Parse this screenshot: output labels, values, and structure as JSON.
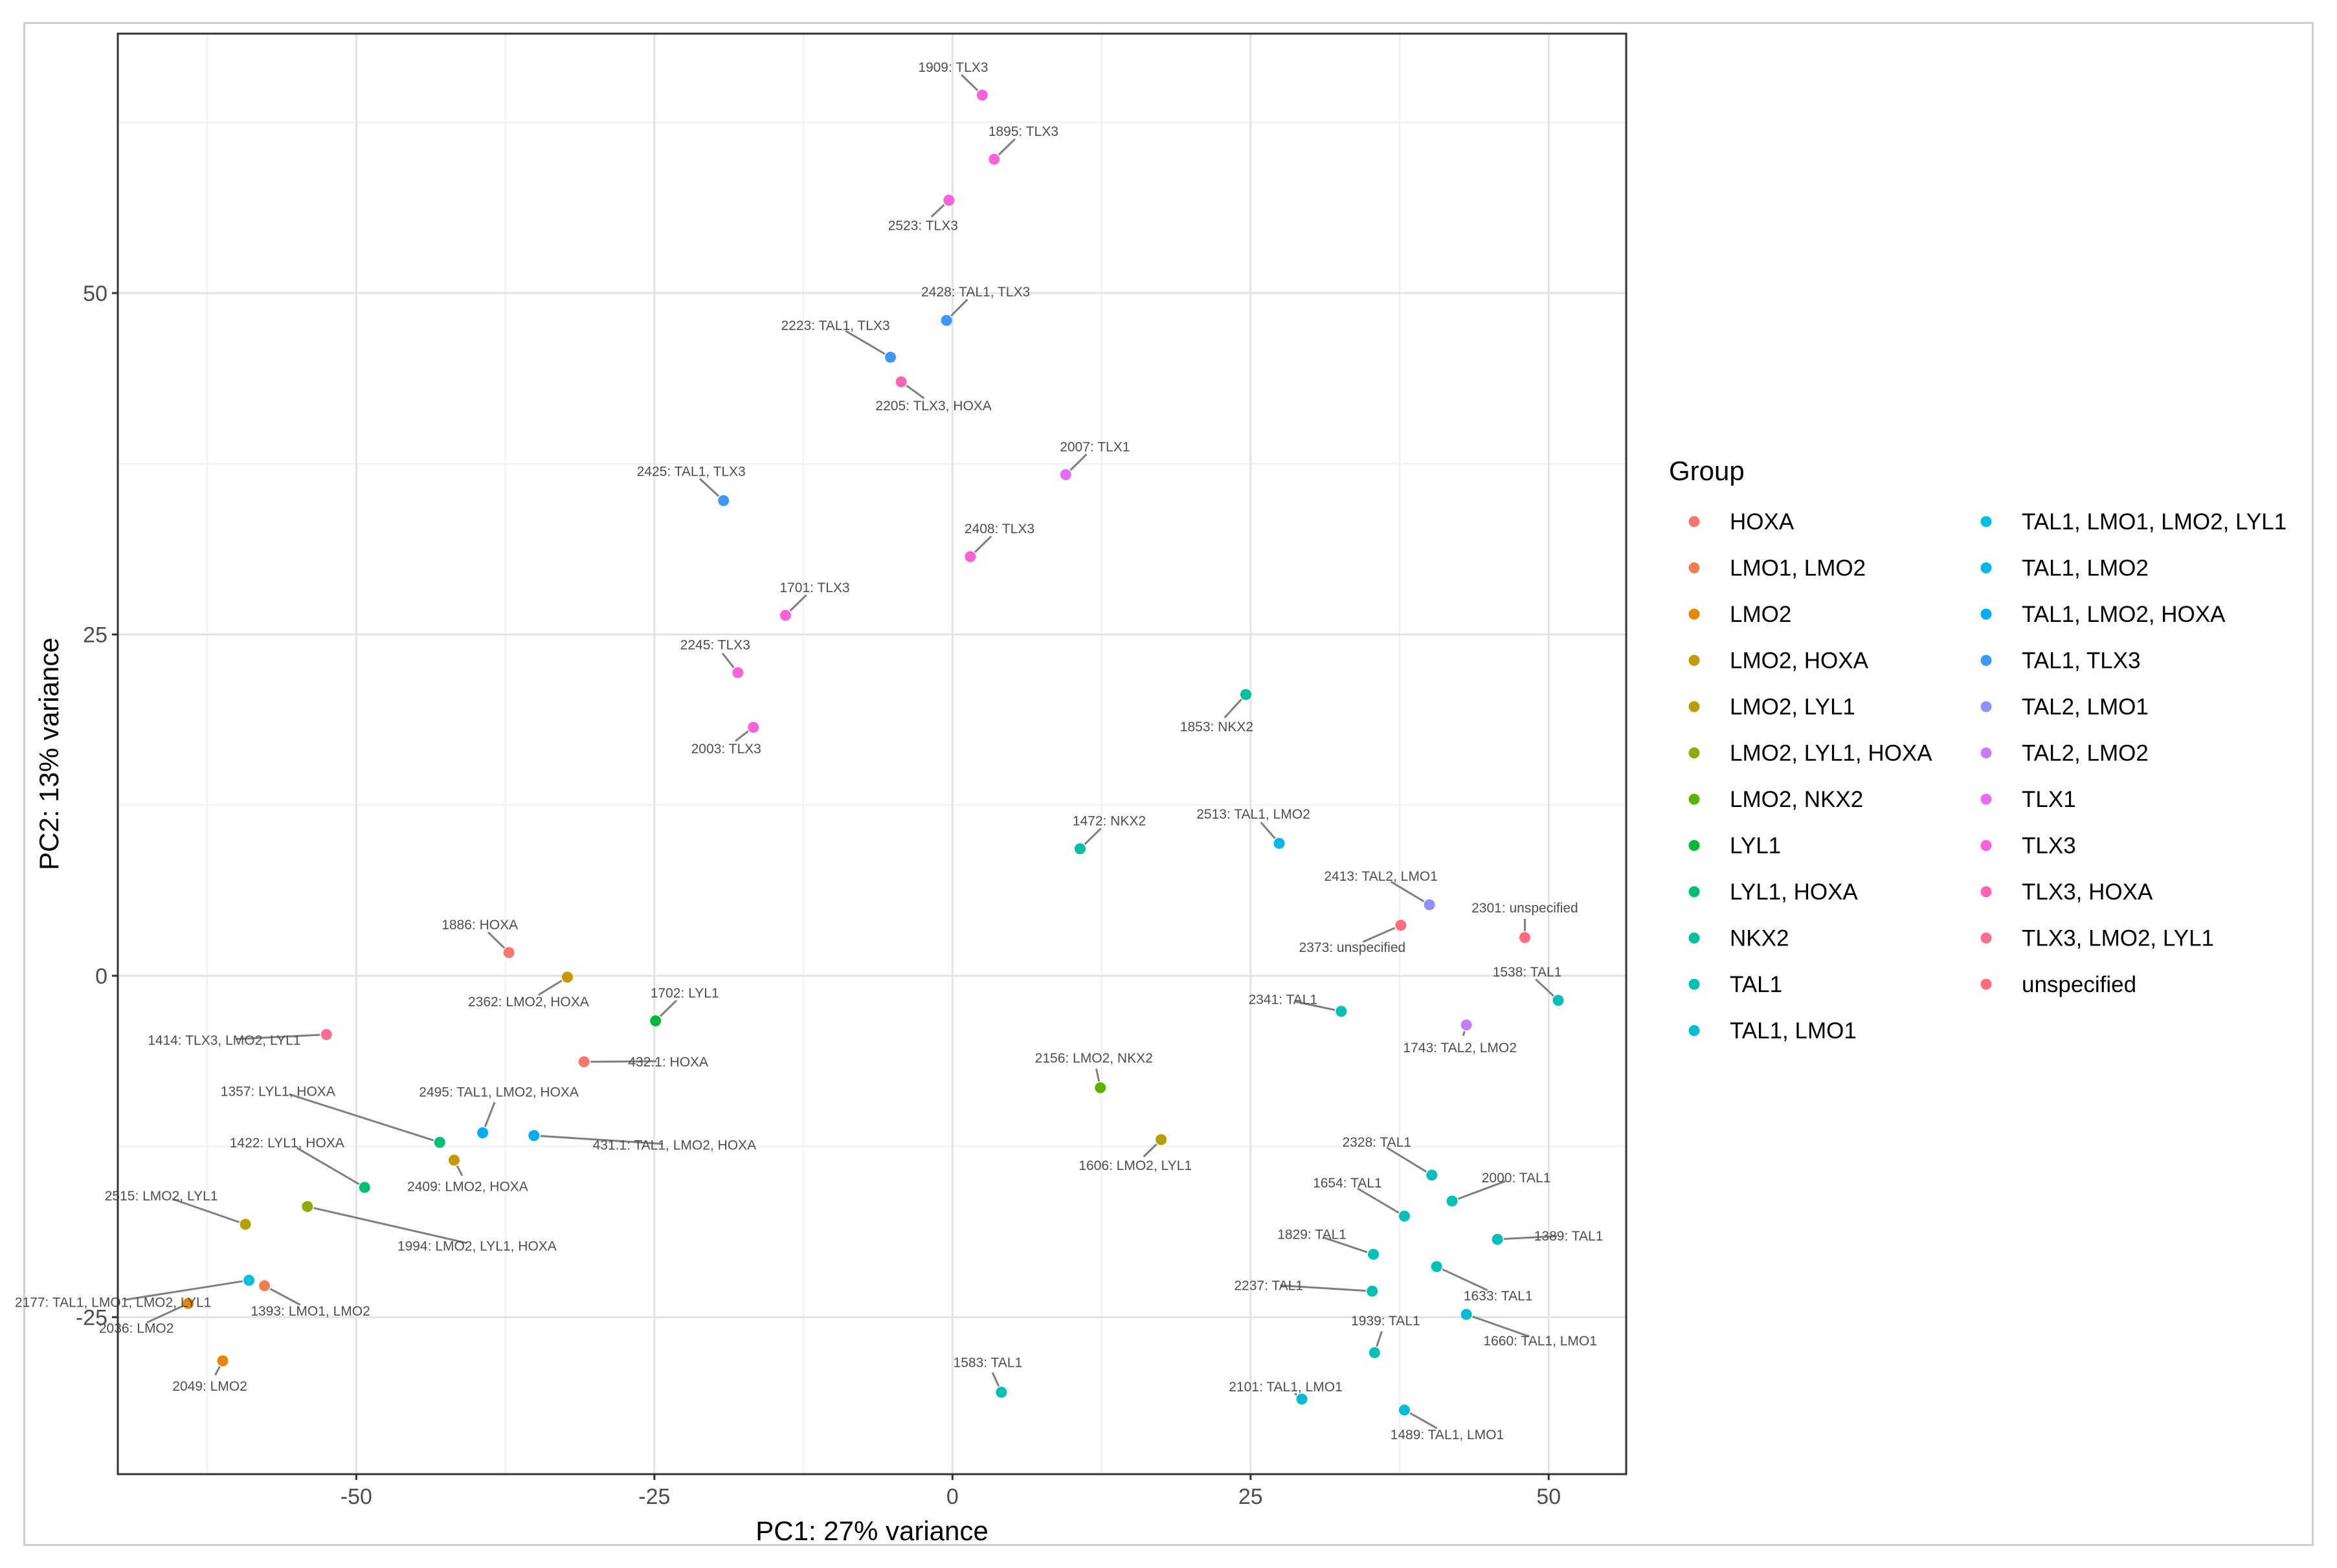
{
  "chart_data": {
    "type": "scatter",
    "xlabel": "PC1: 27% variance",
    "ylabel": "PC2: 13% variance",
    "xlim": [
      -70,
      56.5
    ],
    "ylim": [
      -36.5,
      69
    ],
    "x_ticks": [
      -50,
      -25,
      0,
      25,
      50
    ],
    "y_ticks": [
      -25,
      0,
      25,
      50
    ],
    "grid": true,
    "legend": {
      "title": "Group",
      "position": "right",
      "entries": [
        {
          "name": "HOXA",
          "color": "#F8766D"
        },
        {
          "name": "LMO1, LMO2",
          "color": "#F07F4F"
        },
        {
          "name": "LMO2",
          "color": "#E58700"
        },
        {
          "name": "LMO2, HOXA",
          "color": "#C99800"
        },
        {
          "name": "LMO2, LYL1",
          "color": "#B79F00"
        },
        {
          "name": "LMO2, LYL1, HOXA",
          "color": "#8DAB00"
        },
        {
          "name": "LMO2, NKX2",
          "color": "#5BB300"
        },
        {
          "name": "LYL1",
          "color": "#00BA38"
        },
        {
          "name": "LYL1, HOXA",
          "color": "#00BF74"
        },
        {
          "name": "NKX2",
          "color": "#00C19F"
        },
        {
          "name": "TAL1",
          "color": "#00C0B8"
        },
        {
          "name": "TAL1, LMO1",
          "color": "#00BCD8"
        },
        {
          "name": "TAL1, LMO1, LMO2, LYL1",
          "color": "#00C0E0"
        },
        {
          "name": "TAL1, LMO2",
          "color": "#00B8EA"
        },
        {
          "name": "TAL1, LMO2, HOXA",
          "color": "#00ACFC"
        },
        {
          "name": "TAL1, TLX3",
          "color": "#3D98FA"
        },
        {
          "name": "TAL2, LMO1",
          "color": "#8F91FF"
        },
        {
          "name": "TAL2, LMO2",
          "color": "#C77CFF"
        },
        {
          "name": "TLX1",
          "color": "#E76BF3"
        },
        {
          "name": "TLX3",
          "color": "#FA62DB"
        },
        {
          "name": "TLX3, HOXA",
          "color": "#FF63B6"
        },
        {
          "name": "TLX3, LMO2, LYL1",
          "color": "#FF6C91"
        },
        {
          "name": "unspecified",
          "color": "#FF6C7E"
        }
      ]
    },
    "points": [
      {
        "label": "1909: TLX3",
        "group": "TLX3",
        "x": 2.5,
        "y": 64.5
      },
      {
        "label": "1895: TLX3",
        "group": "TLX3",
        "x": 3.5,
        "y": 59.8
      },
      {
        "label": "2523: TLX3",
        "group": "TLX3",
        "x": -0.3,
        "y": 56.8
      },
      {
        "label": "2428: TAL1, TLX3",
        "group": "TAL1, TLX3",
        "x": -0.5,
        "y": 48.0
      },
      {
        "label": "2223: TAL1, TLX3",
        "group": "TAL1, TLX3",
        "x": -5.2,
        "y": 45.3
      },
      {
        "label": "2205: TLX3, HOXA",
        "group": "TLX3, HOXA",
        "x": -4.3,
        "y": 43.5
      },
      {
        "label": "2007: TLX1",
        "group": "TLX1",
        "x": 9.5,
        "y": 36.7
      },
      {
        "label": "2425: TAL1, TLX3",
        "group": "TAL1, TLX3",
        "x": -19.2,
        "y": 34.8
      },
      {
        "label": "2408: TLX3",
        "group": "TLX3",
        "x": 1.5,
        "y": 30.7
      },
      {
        "label": "1701: TLX3",
        "group": "TLX3",
        "x": -14.0,
        "y": 26.4
      },
      {
        "label": "2245: TLX3",
        "group": "TLX3",
        "x": -18.0,
        "y": 22.2
      },
      {
        "label": "2003: TLX3",
        "group": "TLX3",
        "x": -16.7,
        "y": 18.2
      },
      {
        "label": "1853: NKX2",
        "group": "NKX2",
        "x": 24.6,
        "y": 20.6
      },
      {
        "label": "1472: NKX2",
        "group": "NKX2",
        "x": 10.7,
        "y": 9.3
      },
      {
        "label": "2513: TAL1, LMO2",
        "group": "TAL1, LMO2",
        "x": 27.4,
        "y": 9.7
      },
      {
        "label": "2413: TAL2, LMO1",
        "group": "TAL2, LMO1",
        "x": 40.0,
        "y": 5.2
      },
      {
        "label": "2373: unspecified",
        "group": "unspecified",
        "x": 37.6,
        "y": 3.7
      },
      {
        "label": "2301: unspecified",
        "group": "unspecified",
        "x": 48.0,
        "y": 2.8
      },
      {
        "label": "1538: TAL1",
        "group": "TAL1",
        "x": 50.8,
        "y": -1.8
      },
      {
        "label": "2341: TAL1",
        "group": "TAL1",
        "x": 32.6,
        "y": -2.6
      },
      {
        "label": "1743: TAL2, LMO2",
        "group": "TAL2, LMO2",
        "x": 43.1,
        "y": -3.6
      },
      {
        "label": "1886: HOXA",
        "group": "HOXA",
        "x": -37.2,
        "y": 1.7
      },
      {
        "label": "2362: LMO2, HOXA",
        "group": "LMO2, HOXA",
        "x": -32.3,
        "y": -0.1
      },
      {
        "label": "1702: LYL1",
        "group": "LYL1",
        "x": -24.9,
        "y": -3.3
      },
      {
        "label": "1414: TLX3, LMO2, LYL1",
        "group": "TLX3, LMO2, LYL1",
        "x": -52.5,
        "y": -4.3
      },
      {
        "label": "432.1: HOXA",
        "group": "HOXA",
        "x": -30.9,
        "y": -6.3
      },
      {
        "label": "2156: LMO2, NKX2",
        "group": "LMO2, NKX2",
        "x": 12.4,
        "y": -8.2
      },
      {
        "label": "1357: LYL1, HOXA",
        "group": "LYL1, HOXA",
        "x": -43.0,
        "y": -12.2
      },
      {
        "label": "2495: TAL1, LMO2, HOXA",
        "group": "TAL1, LMO2, HOXA",
        "x": -39.4,
        "y": -11.5
      },
      {
        "label": "431.1: TAL1, LMO2, HOXA",
        "group": "TAL1, LMO2, HOXA",
        "x": -35.1,
        "y": -11.7
      },
      {
        "label": "1606: LMO2, LYL1",
        "group": "LMO2, LYL1",
        "x": 17.5,
        "y": -12.0
      },
      {
        "label": "1422: LYL1, HOXA",
        "group": "LYL1, HOXA",
        "x": -49.3,
        "y": -15.5
      },
      {
        "label": "2409: LMO2, HOXA",
        "group": "LMO2, HOXA",
        "x": -41.8,
        "y": -13.5
      },
      {
        "label": "2515: LMO2, LYL1",
        "group": "LMO2, LYL1",
        "x": -59.3,
        "y": -18.2
      },
      {
        "label": "1994: LMO2, LYL1, HOXA",
        "group": "LMO2, LYL1, HOXA",
        "x": -54.1,
        "y": -16.9
      },
      {
        "label": "2177: TAL1, LMO1, LMO2, LYL1",
        "group": "TAL1, LMO1, LMO2, LYL1",
        "x": -59.0,
        "y": -22.3
      },
      {
        "label": "1393: LMO1, LMO2",
        "group": "LMO1, LMO2",
        "x": -57.7,
        "y": -22.7
      },
      {
        "label": "2036: LMO2",
        "group": "LMO2",
        "x": -64.1,
        "y": -24.0
      },
      {
        "label": "2049: LMO2",
        "group": "LMO2",
        "x": -61.2,
        "y": -28.2
      },
      {
        "label": "2328: TAL1",
        "group": "TAL1",
        "x": 40.2,
        "y": -14.6
      },
      {
        "label": "2000: TAL1",
        "group": "TAL1",
        "x": 41.9,
        "y": -16.5
      },
      {
        "label": "1654: TAL1",
        "group": "TAL1",
        "x": 37.9,
        "y": -17.6
      },
      {
        "label": "1389: TAL1",
        "group": "TAL1",
        "x": 45.7,
        "y": -19.3
      },
      {
        "label": "1829: TAL1",
        "group": "TAL1",
        "x": 35.3,
        "y": -20.4
      },
      {
        "label": "1633: TAL1",
        "group": "TAL1",
        "x": 40.6,
        "y": -21.3
      },
      {
        "label": "2237: TAL1",
        "group": "TAL1",
        "x": 35.2,
        "y": -23.1
      },
      {
        "label": "1660: TAL1, LMO1",
        "group": "TAL1, LMO1",
        "x": 43.1,
        "y": -24.8
      },
      {
        "label": "1939: TAL1",
        "group": "TAL1",
        "x": 35.4,
        "y": -27.6
      },
      {
        "label": "2101: TAL1, LMO1",
        "group": "TAL1, LMO1",
        "x": 29.3,
        "y": -31.0
      },
      {
        "label": "1489: TAL1, LMO1",
        "group": "TAL1, LMO1",
        "x": 37.9,
        "y": -31.8
      },
      {
        "label": "1583: TAL1",
        "group": "TAL1",
        "x": 4.1,
        "y": -30.5
      }
    ]
  }
}
